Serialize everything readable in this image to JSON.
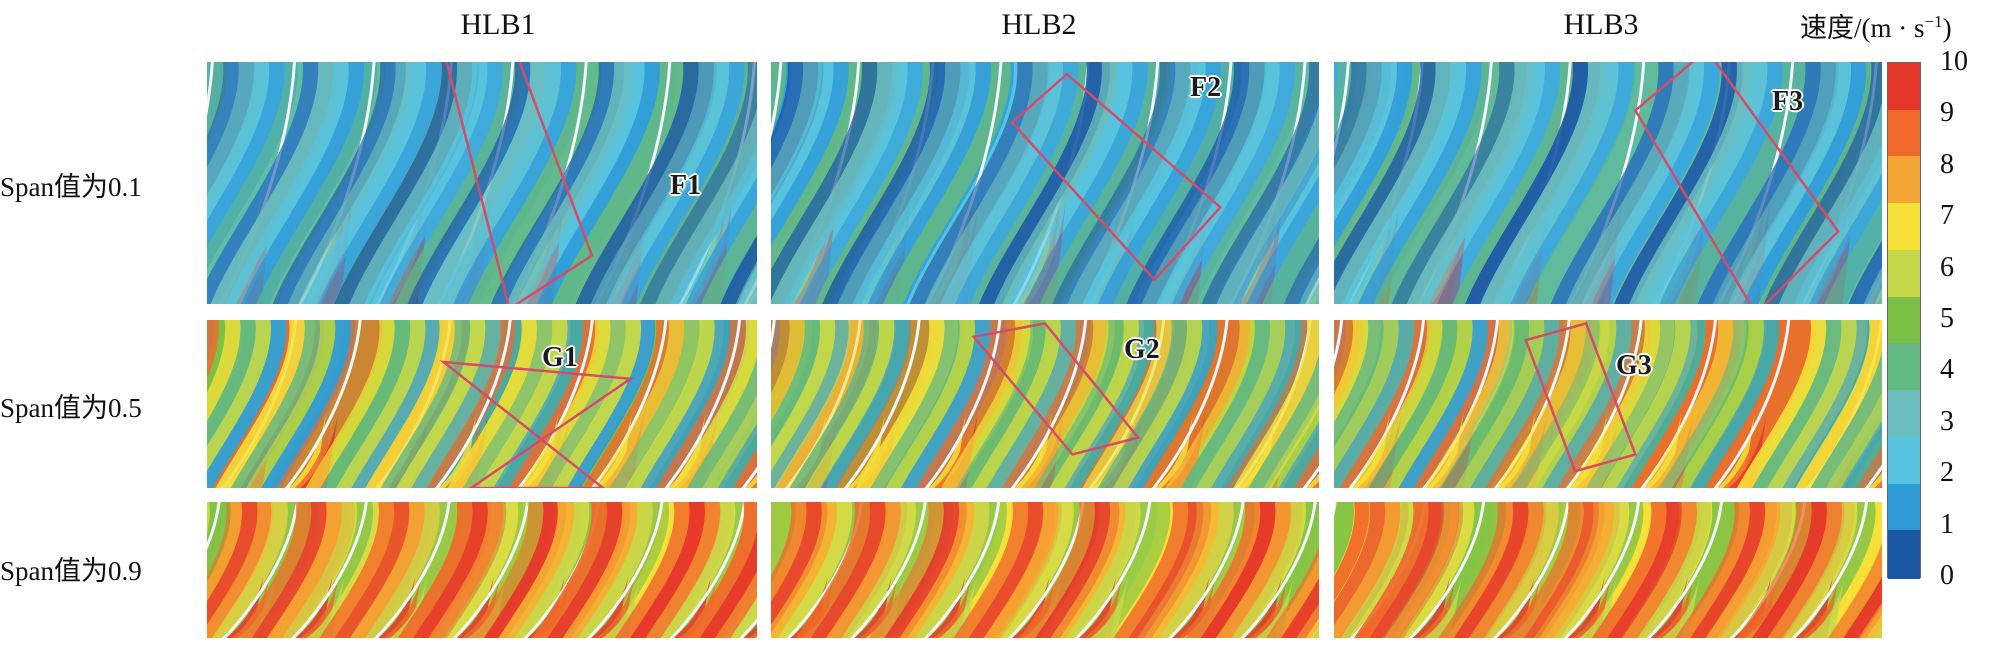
{
  "chart_data": {
    "type": "heatmap",
    "title": "",
    "columns": [
      "HLB1",
      "HLB2",
      "HLB3"
    ],
    "rows": [
      "Span值为0.1",
      "Span值为0.5",
      "Span值为0.9"
    ],
    "colorbar": {
      "label_main": "速度/(m · s",
      "label_exp": "−1",
      "label_close": ")",
      "min": 0,
      "max": 10,
      "ticks": [
        "10",
        "9",
        "8",
        "7",
        "6",
        "5",
        "4",
        "3",
        "2",
        "1",
        "0"
      ],
      "colors": [
        "#e5362b",
        "#f0692a",
        "#f4a533",
        "#f7e138",
        "#c6d84a",
        "#7cc146",
        "#64b882",
        "#6cbdbd",
        "#58c3de",
        "#2e9ad8",
        "#1c57a6"
      ]
    },
    "annotations": [
      {
        "label": "F1",
        "column": "HLB1",
        "row": "Span值为0.1"
      },
      {
        "label": "F2",
        "column": "HLB2",
        "row": "Span值为0.1"
      },
      {
        "label": "F3",
        "column": "HLB3",
        "row": "Span值为0.1"
      },
      {
        "label": "G1",
        "column": "HLB1",
        "row": "Span值为0.5"
      },
      {
        "label": "G2",
        "column": "HLB2",
        "row": "Span值为0.5"
      },
      {
        "label": "G3",
        "column": "HLB3",
        "row": "Span值为0.5"
      }
    ]
  }
}
